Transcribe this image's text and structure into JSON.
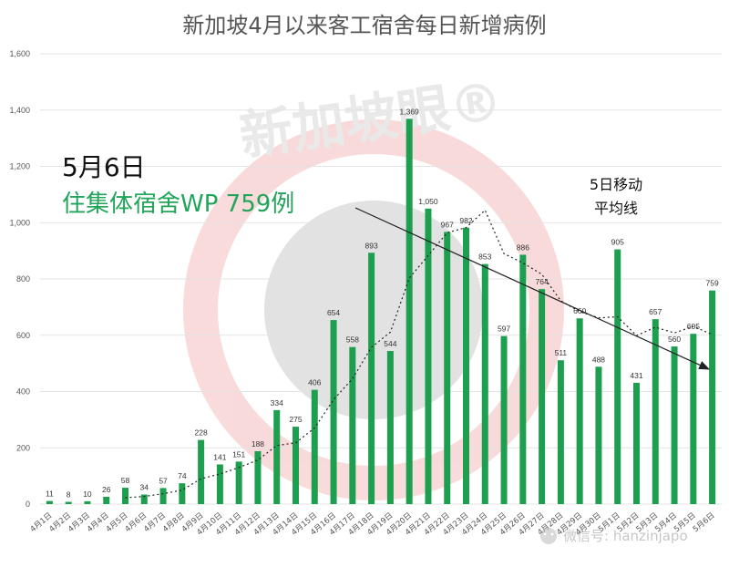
{
  "chart_data": {
    "type": "bar",
    "title": "新加坡4月以来客工宿舍每日新增病例",
    "categories": [
      "4月1日",
      "4月2日",
      "4月3日",
      "4月4日",
      "4月5日",
      "4月6日",
      "4月7日",
      "4月8日",
      "4月9日",
      "4月10日",
      "4月11日",
      "4月12日",
      "4月13日",
      "4月14日",
      "4月15日",
      "4月16日",
      "4月17日",
      "4月18日",
      "4月19日",
      "4月20日",
      "4月21日",
      "4月22日",
      "4月23日",
      "4月24日",
      "4月25日",
      "4月26日",
      "4月27日",
      "4月28日",
      "4月29日",
      "4月30日",
      "5月1日",
      "5月2日",
      "5月3日",
      "5月4日",
      "5月5日",
      "5月6日"
    ],
    "values": [
      11,
      8,
      10,
      26,
      58,
      34,
      57,
      74,
      228,
      141,
      151,
      188,
      334,
      275,
      406,
      654,
      558,
      893,
      544,
      1369,
      1050,
      967,
      982,
      853,
      597,
      886,
      764,
      511,
      660,
      488,
      905,
      431,
      657,
      560,
      605,
      759
    ],
    "moving_average": {
      "label_line1": "5日移动",
      "label_line2": "平均线",
      "style": "dotted"
    },
    "ylim": [
      0,
      1600
    ],
    "yticks": [
      "0",
      "200",
      "400",
      "600",
      "800",
      "1,000",
      "1,200",
      "1,400",
      "1,600"
    ],
    "grid": "horizontal",
    "bar_color": "#1e9e4f",
    "trend_arrow": true
  },
  "annotation": {
    "date": "5月6日",
    "text": "住集体宿舍WP 759例",
    "text_color": "#22a55a"
  },
  "watermark": {
    "brand": "新加坡眼®",
    "wechat": "微信号: hanzinjapo"
  }
}
